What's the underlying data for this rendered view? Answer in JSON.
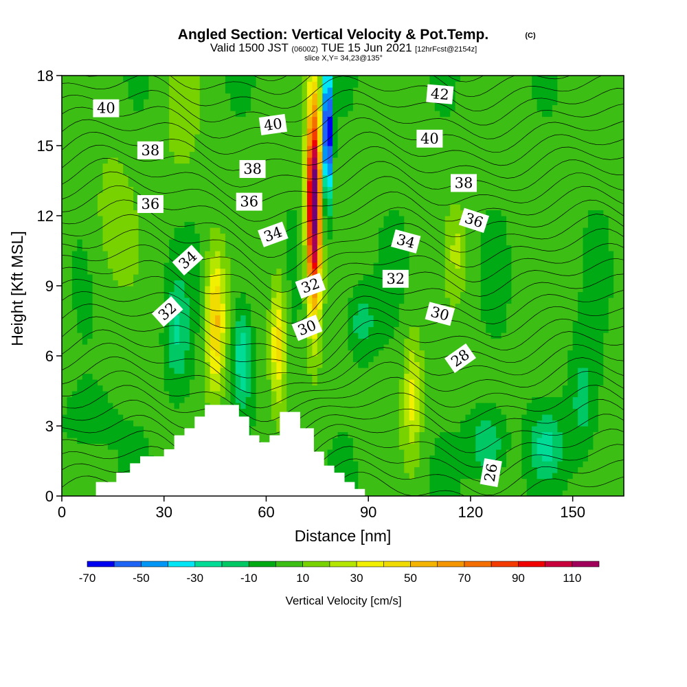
{
  "chart_data": {
    "type": "heatmap",
    "title": "Angled Section: Vertical Velocity & Pot.Temp.",
    "title_unit": "(C)",
    "subtitle_parts": {
      "a": "Valid 1500 JST",
      "b": "(0600Z)",
      "c": "TUE 15 Jun 2021",
      "d": "[12hrFcst@2154z]"
    },
    "subtitle2": "slice X,Y= 34,23@135°",
    "xlabel": "Distance [nm]",
    "ylabel": "Height [Kft MSL]",
    "xlim": [
      0,
      165
    ],
    "ylim": [
      0,
      18
    ],
    "x_ticks": [
      0,
      30,
      60,
      90,
      120,
      150
    ],
    "y_ticks": [
      0,
      3,
      6,
      9,
      12,
      15,
      18
    ],
    "x_tick_labels": [
      "0",
      "30",
      "60",
      "90",
      "120",
      "150"
    ],
    "y_tick_labels": [
      "0",
      "3",
      "6",
      "9",
      "12",
      "15",
      "18"
    ],
    "colorbar": {
      "label": "Vertical Velocity [cm/s]",
      "ticks": [
        -70,
        -50,
        -30,
        -10,
        10,
        30,
        50,
        70,
        90,
        110
      ],
      "tick_labels": [
        "-70",
        "-50",
        "-30",
        "-10",
        "10",
        "30",
        "50",
        "70",
        "90",
        "110"
      ],
      "bounds": [
        -70,
        -60,
        -50,
        -40,
        -30,
        -20,
        -10,
        0,
        10,
        20,
        30,
        40,
        50,
        60,
        70,
        80,
        90,
        100,
        110,
        120
      ],
      "colors": [
        "#0000f0",
        "#1e64f5",
        "#0096f5",
        "#00e6f5",
        "#00dc96",
        "#00c864",
        "#00aa14",
        "#3cbe14",
        "#78d200",
        "#b4e600",
        "#f0f000",
        "#f0dc00",
        "#f5b400",
        "#f59600",
        "#f56e00",
        "#f53c00",
        "#f00000",
        "#c8003c",
        "#a0005a",
        "#6e0078"
      ]
    },
    "contour_labels": [
      {
        "text": "40",
        "x": 13,
        "y": 16.6
      },
      {
        "text": "38",
        "x": 26,
        "y": 14.8
      },
      {
        "text": "36",
        "x": 26,
        "y": 12.5
      },
      {
        "text": "34",
        "x": 37,
        "y": 10.1,
        "angle": -42
      },
      {
        "text": "32",
        "x": 31,
        "y": 7.9,
        "angle": -42
      },
      {
        "text": "40",
        "x": 62,
        "y": 15.9,
        "angle": -8
      },
      {
        "text": "38",
        "x": 56,
        "y": 14.0
      },
      {
        "text": "36",
        "x": 55,
        "y": 12.6
      },
      {
        "text": "34",
        "x": 62,
        "y": 11.2,
        "angle": -20
      },
      {
        "text": "32",
        "x": 73,
        "y": 9.0,
        "angle": -20
      },
      {
        "text": "30",
        "x": 72,
        "y": 7.2,
        "angle": -22
      },
      {
        "text": "42",
        "x": 111,
        "y": 17.2,
        "angle": 5
      },
      {
        "text": "40",
        "x": 108,
        "y": 15.3
      },
      {
        "text": "38",
        "x": 118,
        "y": 13.4
      },
      {
        "text": "36",
        "x": 121,
        "y": 11.8,
        "angle": 18
      },
      {
        "text": "34",
        "x": 101,
        "y": 10.9,
        "angle": 15
      },
      {
        "text": "32",
        "x": 98,
        "y": 9.3
      },
      {
        "text": "30",
        "x": 111,
        "y": 7.8,
        "angle": 15
      },
      {
        "text": "28",
        "x": 117,
        "y": 5.9,
        "angle": -35
      },
      {
        "text": "26",
        "x": 126,
        "y": 1.0,
        "angle": -80
      }
    ],
    "terrain_profile": [
      [
        0,
        0
      ],
      [
        10,
        0
      ],
      [
        10,
        0.6
      ],
      [
        16,
        0.6
      ],
      [
        16,
        1.0
      ],
      [
        20,
        1.0
      ],
      [
        20,
        1.4
      ],
      [
        23,
        1.4
      ],
      [
        23,
        1.7
      ],
      [
        30,
        1.7
      ],
      [
        30,
        2.0
      ],
      [
        33,
        2.0
      ],
      [
        33,
        2.6
      ],
      [
        36,
        2.6
      ],
      [
        36,
        2.9
      ],
      [
        39,
        2.9
      ],
      [
        39,
        3.4
      ],
      [
        42,
        3.4
      ],
      [
        42,
        3.9
      ],
      [
        52,
        3.9
      ],
      [
        52,
        3.4
      ],
      [
        55,
        3.4
      ],
      [
        55,
        2.6
      ],
      [
        58,
        2.6
      ],
      [
        58,
        2.3
      ],
      [
        61,
        2.3
      ],
      [
        61,
        2.6
      ],
      [
        64,
        2.6
      ],
      [
        64,
        3.6
      ],
      [
        70,
        3.6
      ],
      [
        70,
        2.9
      ],
      [
        74,
        2.9
      ],
      [
        74,
        1.9
      ],
      [
        77,
        1.9
      ],
      [
        77,
        1.3
      ],
      [
        80,
        1.3
      ],
      [
        80,
        1.0
      ],
      [
        83,
        1.0
      ],
      [
        83,
        0.6
      ],
      [
        86,
        0.6
      ],
      [
        86,
        0.3
      ],
      [
        89,
        0.3
      ],
      [
        89,
        0
      ],
      [
        165,
        0
      ]
    ]
  }
}
